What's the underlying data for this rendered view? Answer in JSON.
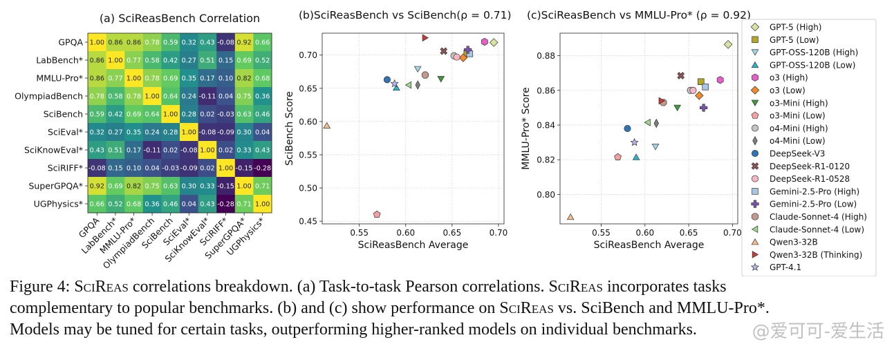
{
  "caption": {
    "lines": [
      [
        "Figure 4: ",
        "@SciReas",
        " correlations breakdown. (a) Task-to-task Pearson correlations. ",
        "@SciReas",
        " incorporates tasks"
      ],
      [
        "complementary to popular benchmarks. (b) and (c) show performance on ",
        "@SciReas",
        " vs. SciBench and MMLU-Pro*."
      ],
      [
        "Models may be tuned for certain tasks, outperforming higher-ranked models on individual benchmarks."
      ]
    ]
  },
  "watermark": "@爱可可-爱生活",
  "chart_data": [
    {
      "type": "heatmap",
      "title": "(a) SciReasBench Correlation",
      "colormap": "viridis",
      "vmin": -0.28,
      "vmax": 1.0,
      "row_labels": [
        "GPQA",
        "LabBench*",
        "MMLU-Pro*",
        "OlympiadBench",
        "SciBench",
        "SciEval*",
        "SciKnowEval*",
        "SciRIFF*",
        "SuperGPQA*",
        "UGPhysics*"
      ],
      "col_labels": [
        "GPQA",
        "LabBench*",
        "MMLU-Pro*",
        "OlympiadBench",
        "SciBench",
        "SciEval*",
        "SciKnowEval*",
        "SciRIFF*",
        "SuperGPQA*",
        "UGPhysics*"
      ],
      "values": [
        [
          1.0,
          0.86,
          0.86,
          0.78,
          0.59,
          0.32,
          0.43,
          -0.08,
          0.92,
          0.66
        ],
        [
          0.86,
          1.0,
          0.77,
          0.58,
          0.42,
          0.27,
          0.51,
          0.15,
          0.69,
          0.52
        ],
        [
          0.86,
          0.77,
          1.0,
          0.78,
          0.69,
          0.35,
          0.17,
          0.1,
          0.82,
          0.68
        ],
        [
          0.78,
          0.58,
          0.78,
          1.0,
          0.64,
          0.24,
          -0.11,
          0.04,
          0.75,
          0.36
        ],
        [
          0.59,
          0.42,
          0.69,
          0.64,
          1.0,
          0.28,
          0.02,
          -0.03,
          0.63,
          0.46
        ],
        [
          0.32,
          0.27,
          0.35,
          0.24,
          0.28,
          1.0,
          -0.08,
          -0.09,
          0.3,
          0.04
        ],
        [
          0.43,
          0.51,
          0.17,
          -0.11,
          0.02,
          -0.08,
          1.0,
          0.02,
          0.33,
          0.43
        ],
        [
          -0.08,
          0.15,
          0.1,
          0.04,
          -0.03,
          -0.09,
          0.02,
          1.0,
          -0.15,
          -0.28
        ],
        [
          0.92,
          0.69,
          0.82,
          0.75,
          0.63,
          0.3,
          0.33,
          -0.15,
          1.0,
          0.71
        ],
        [
          0.66,
          0.52,
          0.68,
          0.36,
          0.46,
          0.04,
          0.43,
          -0.28,
          0.71,
          1.0
        ]
      ],
      "value_labels": [
        [
          "1.00",
          "0.86",
          "0.86",
          "0.78",
          "0.59",
          "0.32",
          "0.43",
          "-0.08",
          "0.92",
          "0.66"
        ],
        [
          "0.86",
          "1.00",
          "0.77",
          "0.58",
          "0.42",
          "0.27",
          "0.51",
          "0.15",
          "0.69",
          "0.52"
        ],
        [
          "0.86",
          "0.77",
          "1.00",
          "0.78",
          "0.69",
          "0.35",
          "0.17",
          "0.10",
          "0.82",
          "0.68"
        ],
        [
          "0.78",
          "0.58",
          "0.78",
          "1.00",
          "0.64",
          "0.24",
          "-0.11",
          "0.04",
          "0.75",
          "0.36"
        ],
        [
          "0.59",
          "0.42",
          "0.69",
          "0.64",
          "1.00",
          "0.28",
          "0.02",
          "-0.03",
          "0.63",
          "0.46"
        ],
        [
          "0.32",
          "0.27",
          "0.35",
          "0.24",
          "0.28",
          "1.00",
          "-0.08",
          "-0.09",
          "0.30",
          "0.04"
        ],
        [
          "0.43",
          "0.51",
          "0.17",
          "-0.11",
          "0.02",
          "-0.08",
          "1.00",
          "0.02",
          "0.33",
          "0.43"
        ],
        [
          "-0.08",
          "0.15",
          "0.10",
          "0.04",
          "-0.03",
          "-0.09",
          "0.02",
          "1.00",
          "-0.15",
          "-0.28"
        ],
        [
          "0.92",
          "0.69",
          "0.82",
          "0.75",
          "0.63",
          "0.30",
          "0.33",
          "-0.15",
          "1.00",
          "0.71"
        ],
        [
          "0.66",
          "0.52",
          "0.68",
          "0.36",
          "0.46",
          "0.04",
          "0.43",
          "-0.28",
          "0.71",
          "1.00"
        ]
      ]
    },
    {
      "type": "scatter",
      "title": "(b)SciReasBench vs SciBench(ρ = 0.71)",
      "xlabel": "SciReasBench Average",
      "ylabel": "SciBench Score",
      "xlim": [
        0.51,
        0.706
      ],
      "ylim": [
        0.446,
        0.733
      ],
      "xticks": [
        0.55,
        0.6,
        0.65,
        0.7
      ],
      "xtick_labels": [
        "0.55",
        "0.60",
        "0.65",
        "0.70"
      ],
      "yticks": [
        0.45,
        0.5,
        0.55,
        0.6,
        0.65,
        0.7
      ],
      "ytick_labels": [
        "0.45",
        "0.50",
        "0.55",
        "0.60",
        "0.65",
        "0.70"
      ],
      "grid": true,
      "points": [
        {
          "model": "GPT-5 (High)",
          "x": 0.695,
          "y": 0.719
        },
        {
          "model": "GPT-5 (Low)",
          "x": 0.666,
          "y": 0.703
        },
        {
          "model": "GPT-OSS-120B (High)",
          "x": 0.613,
          "y": 0.679
        },
        {
          "model": "GPT-OSS-120B (Low)",
          "x": 0.59,
          "y": 0.651
        },
        {
          "model": "o3 (High)",
          "x": 0.685,
          "y": 0.72
        },
        {
          "model": "o3 (Low)",
          "x": 0.662,
          "y": 0.696
        },
        {
          "model": "o3-Mini (High)",
          "x": 0.638,
          "y": 0.664
        },
        {
          "model": "o3-Mini (Low)",
          "x": 0.569,
          "y": 0.46
        },
        {
          "model": "o4-Mini (High)",
          "x": 0.652,
          "y": 0.699
        },
        {
          "model": "o4-Mini (Low)",
          "x": 0.613,
          "y": 0.655
        },
        {
          "model": "DeepSeek-V3",
          "x": 0.58,
          "y": 0.663
        },
        {
          "model": "DeepSeek-R1-0120",
          "x": 0.641,
          "y": 0.706
        },
        {
          "model": "DeepSeek-R1-0528",
          "x": 0.655,
          "y": 0.697
        },
        {
          "model": "Gemini-2.5-Pro (High)",
          "x": 0.669,
          "y": 0.702
        },
        {
          "model": "Gemini-2.5-Pro (Low)",
          "x": 0.667,
          "y": 0.708
        },
        {
          "model": "Claude-Sonnet-4 (High)",
          "x": 0.621,
          "y": 0.67
        },
        {
          "model": "Claude-Sonnet-4 (Low)",
          "x": 0.603,
          "y": 0.655
        },
        {
          "model": "Qwen3-32B",
          "x": 0.515,
          "y": 0.594
        },
        {
          "model": "Qwen3-32B (Thinking)",
          "x": 0.621,
          "y": 0.726
        },
        {
          "model": "GPT-4.1",
          "x": 0.588,
          "y": 0.657
        }
      ]
    },
    {
      "type": "scatter",
      "title": "(c)SciReasBench vs MMLU-Pro* (ρ = 0.92)",
      "xlabel": "SciReasBench Average",
      "ylabel": "MMLU-Pro* Score",
      "xlim": [
        0.503,
        0.706
      ],
      "ylim": [
        0.783,
        0.893
      ],
      "xticks": [
        0.55,
        0.6,
        0.65,
        0.7
      ],
      "xtick_labels": [
        "0.55",
        "0.60",
        "0.65",
        "0.70"
      ],
      "yticks": [
        0.8,
        0.82,
        0.84,
        0.86,
        0.88
      ],
      "ytick_labels": [
        "0.80",
        "0.82",
        "0.84",
        "0.86",
        "0.88"
      ],
      "grid": true,
      "points": [
        {
          "model": "GPT-5 (High)",
          "x": 0.695,
          "y": 0.8865
        },
        {
          "model": "GPT-5 (Low)",
          "x": 0.664,
          "y": 0.865
        },
        {
          "model": "GPT-OSS-120B (High)",
          "x": 0.612,
          "y": 0.8275
        },
        {
          "model": "GPT-OSS-120B (Low)",
          "x": 0.59,
          "y": 0.8215
        },
        {
          "model": "o3 (High)",
          "x": 0.686,
          "y": 0.866
        },
        {
          "model": "o3 (Low)",
          "x": 0.662,
          "y": 0.857
        },
        {
          "model": "o3-Mini (High)",
          "x": 0.637,
          "y": 0.85
        },
        {
          "model": "o3-Mini (Low)",
          "x": 0.569,
          "y": 0.8215
        },
        {
          "model": "o4-Mini (High)",
          "x": 0.652,
          "y": 0.86
        },
        {
          "model": "o4-Mini (Low)",
          "x": 0.613,
          "y": 0.841
        },
        {
          "model": "DeepSeek-V3",
          "x": 0.58,
          "y": 0.838
        },
        {
          "model": "DeepSeek-R1-0120",
          "x": 0.641,
          "y": 0.8685
        },
        {
          "model": "DeepSeek-R1-0528",
          "x": 0.655,
          "y": 0.86
        },
        {
          "model": "Gemini-2.5-Pro (High)",
          "x": 0.669,
          "y": 0.862
        },
        {
          "model": "Gemini-2.5-Pro (Low)",
          "x": 0.667,
          "y": 0.85
        },
        {
          "model": "Claude-Sonnet-4 (High)",
          "x": 0.621,
          "y": 0.853
        },
        {
          "model": "Claude-Sonnet-4 (Low)",
          "x": 0.603,
          "y": 0.8415
        },
        {
          "model": "Qwen3-32B",
          "x": 0.515,
          "y": 0.787
        },
        {
          "model": "Qwen3-32B (Thinking)",
          "x": 0.619,
          "y": 0.854
        },
        {
          "model": "GPT-4.1",
          "x": 0.588,
          "y": 0.83
        }
      ]
    }
  ],
  "legend": {
    "placement": "right",
    "entries": [
      {
        "label": "GPT-5 (High)",
        "marker": "diamond",
        "color": "#d8e3a0"
      },
      {
        "label": "GPT-5 (Low)",
        "marker": "square",
        "color": "#b5a728"
      },
      {
        "label": "GPT-OSS-120B (High)",
        "marker": "triangle-down",
        "color": "#9fd6ea"
      },
      {
        "label": "GPT-OSS-120B (Low)",
        "marker": "triangle-up",
        "color": "#2bb5c9"
      },
      {
        "label": "o3 (High)",
        "marker": "hexagon",
        "color": "#e65fc8"
      },
      {
        "label": "o3 (Low)",
        "marker": "diamond",
        "color": "#f08a2c"
      },
      {
        "label": "o3-Mini (High)",
        "marker": "triangle-down",
        "color": "#3f9a3a"
      },
      {
        "label": "o3-Mini (Low)",
        "marker": "pentagon",
        "color": "#f3a0a3"
      },
      {
        "label": "o4-Mini (High)",
        "marker": "circle",
        "color": "#c4c4c4"
      },
      {
        "label": "o4-Mini (Low)",
        "marker": "thin-diamond",
        "color": "#7f7f7f"
      },
      {
        "label": "DeepSeek-V3",
        "marker": "circle",
        "color": "#2f74b3"
      },
      {
        "label": "DeepSeek-R1-0120",
        "marker": "x",
        "color": "#8c5454"
      },
      {
        "label": "DeepSeek-R1-0528",
        "marker": "circle",
        "color": "#f7b6c3"
      },
      {
        "label": "Gemini-2.5-Pro (High)",
        "marker": "square",
        "color": "#a9c6e6"
      },
      {
        "label": "Gemini-2.5-Pro (Low)",
        "marker": "plus",
        "color": "#7a55b0"
      },
      {
        "label": "Claude-Sonnet-4 (High)",
        "marker": "octagon",
        "color": "#c49a8e"
      },
      {
        "label": "Claude-Sonnet-4 (Low)",
        "marker": "triangle-left",
        "color": "#9fd88f"
      },
      {
        "label": "Qwen3-32B",
        "marker": "triangle-up",
        "color": "#f6bd8e"
      },
      {
        "label": "Qwen3-32B (Thinking)",
        "marker": "triangle-right",
        "color": "#c93a3a"
      },
      {
        "label": "GPT-4.1",
        "marker": "star",
        "color": "#b6b5ec"
      }
    ]
  }
}
